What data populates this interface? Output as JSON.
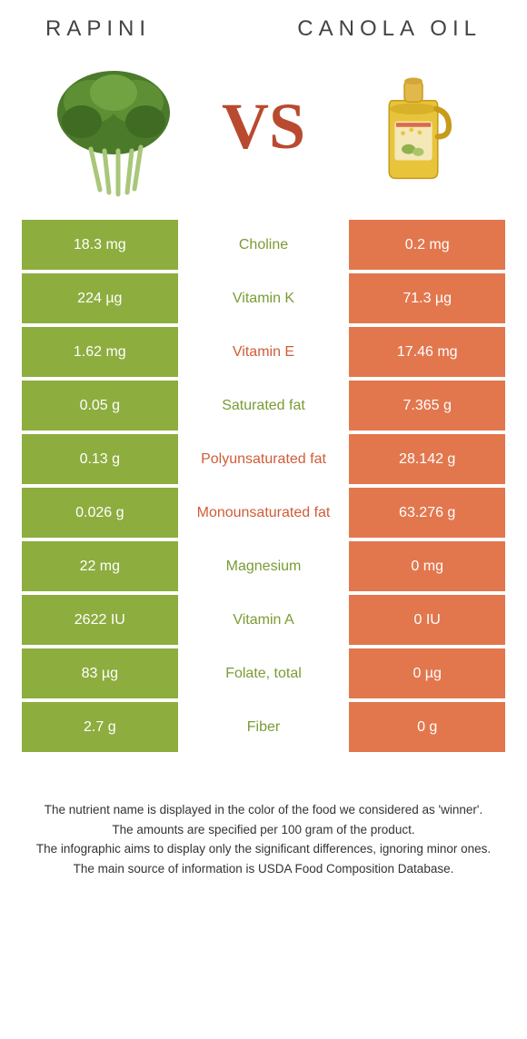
{
  "colors": {
    "left": "#8dad3f",
    "right": "#e2774e",
    "left_text": "#7b9b34",
    "right_text": "#cf5d38",
    "vs": "#b94a2f"
  },
  "header": {
    "left_title": "Rapini",
    "right_title": "Canola oil"
  },
  "vs_label": "VS",
  "rows": [
    {
      "left": "18.3 mg",
      "mid": "Choline",
      "right": "0.2 mg",
      "winner": "left"
    },
    {
      "left": "224 µg",
      "mid": "Vitamin K",
      "right": "71.3 µg",
      "winner": "left"
    },
    {
      "left": "1.62 mg",
      "mid": "Vitamin E",
      "right": "17.46 mg",
      "winner": "right"
    },
    {
      "left": "0.05 g",
      "mid": "Saturated fat",
      "right": "7.365 g",
      "winner": "left"
    },
    {
      "left": "0.13 g",
      "mid": "Polyunsaturated fat",
      "right": "28.142 g",
      "winner": "right"
    },
    {
      "left": "0.026 g",
      "mid": "Monounsaturated fat",
      "right": "63.276 g",
      "winner": "right"
    },
    {
      "left": "22 mg",
      "mid": "Magnesium",
      "right": "0 mg",
      "winner": "left"
    },
    {
      "left": "2622 IU",
      "mid": "Vitamin A",
      "right": "0 IU",
      "winner": "left"
    },
    {
      "left": "83 µg",
      "mid": "Folate, total",
      "right": "0 µg",
      "winner": "left"
    },
    {
      "left": "2.7 g",
      "mid": "Fiber",
      "right": "0 g",
      "winner": "left"
    }
  ],
  "footer": {
    "line1": "The nutrient name is displayed in the color of the food we considered as 'winner'.",
    "line2": "The amounts are specified per 100 gram of the product.",
    "line3": "The infographic aims to display only the significant differences, ignoring minor ones.",
    "line4": "The main source of information is USDA Food Composition Database."
  }
}
